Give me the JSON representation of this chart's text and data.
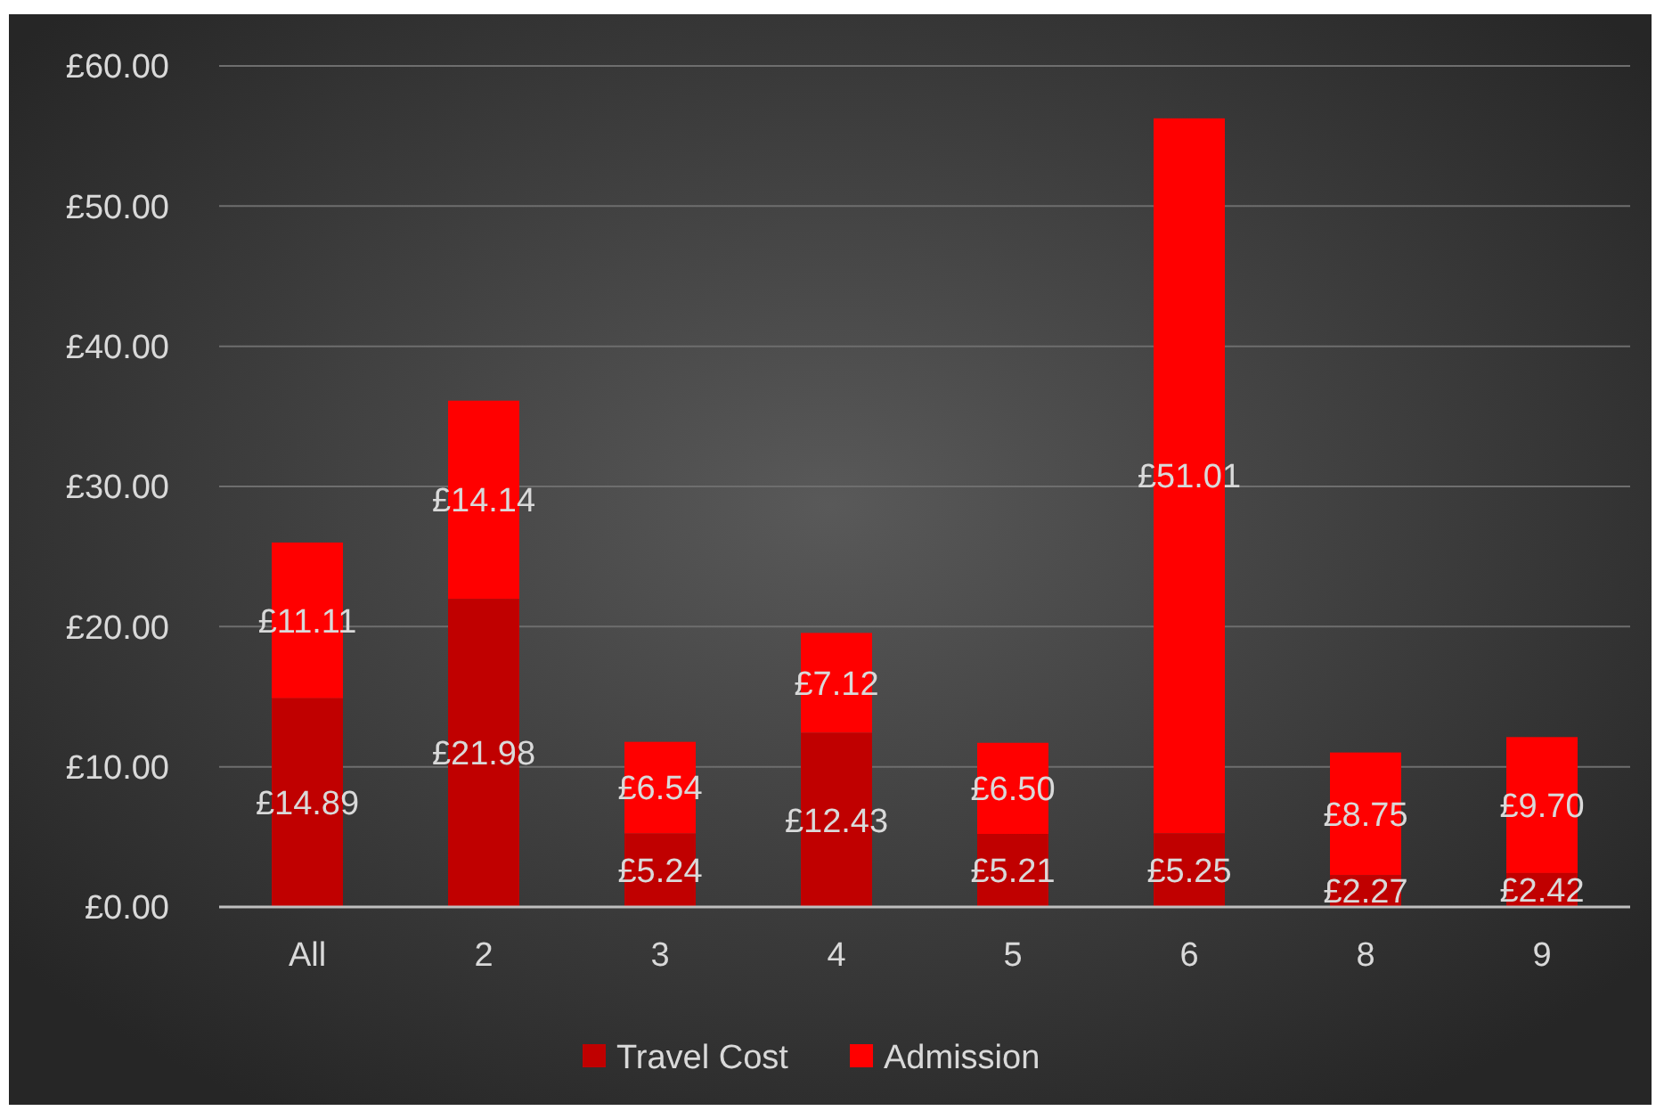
{
  "chart_data": {
    "type": "bar",
    "stacked": true,
    "categories": [
      "All",
      "2",
      "3",
      "4",
      "5",
      "6",
      "8",
      "9"
    ],
    "series": [
      {
        "name": "Travel Cost",
        "color": "#c00000",
        "values": [
          14.89,
          21.98,
          5.24,
          12.43,
          5.21,
          5.25,
          2.27,
          2.42
        ],
        "value_labels": [
          "£14.89",
          "£21.98",
          "£5.24",
          "£12.43",
          "£5.21",
          "£5.25",
          "£2.27",
          "£2.42"
        ]
      },
      {
        "name": "Admission",
        "color": "#ff0000",
        "values": [
          11.11,
          14.14,
          6.54,
          7.12,
          6.5,
          51.01,
          8.75,
          9.7
        ],
        "value_labels": [
          "£11.11",
          "£14.14",
          "£6.54",
          "£7.12",
          "£6.50",
          "£51.01",
          "£8.75",
          "£9.70"
        ]
      }
    ],
    "ylim": [
      0,
      60
    ],
    "yticks": [
      {
        "value": 0,
        "label": "£0.00"
      },
      {
        "value": 10,
        "label": "£10.00"
      },
      {
        "value": 20,
        "label": "£20.00"
      },
      {
        "value": 30,
        "label": "£30.00"
      },
      {
        "value": 40,
        "label": "£40.00"
      },
      {
        "value": 50,
        "label": "£50.00"
      },
      {
        "value": 60,
        "label": "£60.00"
      }
    ],
    "grid": true,
    "legend": "bottom"
  }
}
